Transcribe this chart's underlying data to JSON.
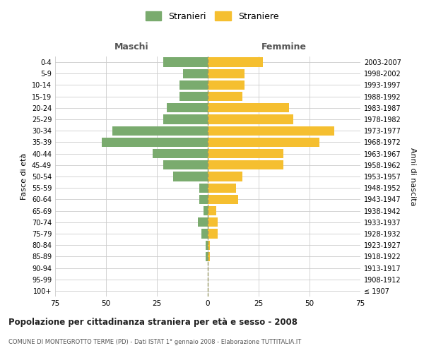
{
  "age_groups": [
    "100+",
    "95-99",
    "90-94",
    "85-89",
    "80-84",
    "75-79",
    "70-74",
    "65-69",
    "60-64",
    "55-59",
    "50-54",
    "45-49",
    "40-44",
    "35-39",
    "30-34",
    "25-29",
    "20-24",
    "15-19",
    "10-14",
    "5-9",
    "0-4"
  ],
  "birth_years": [
    "≤ 1907",
    "1908-1912",
    "1913-1917",
    "1918-1922",
    "1923-1927",
    "1928-1932",
    "1933-1937",
    "1938-1942",
    "1943-1947",
    "1948-1952",
    "1953-1957",
    "1958-1962",
    "1963-1967",
    "1968-1972",
    "1973-1977",
    "1978-1982",
    "1983-1987",
    "1988-1992",
    "1993-1997",
    "1998-2002",
    "2003-2007"
  ],
  "males": [
    0,
    0,
    0,
    1,
    1,
    3,
    5,
    2,
    4,
    4,
    17,
    22,
    27,
    52,
    47,
    22,
    20,
    14,
    14,
    12,
    22
  ],
  "females": [
    0,
    0,
    0,
    1,
    1,
    5,
    5,
    4,
    15,
    14,
    17,
    37,
    37,
    55,
    62,
    42,
    40,
    17,
    18,
    18,
    27
  ],
  "male_color": "#7aab6e",
  "female_color": "#f5bf30",
  "grid_color": "#cccccc",
  "dashed_line_color": "#999966",
  "title": "Popolazione per cittadinanza straniera per età e sesso - 2008",
  "subtitle": "COMUNE DI MONTEGROTTO TERME (PD) - Dati ISTAT 1° gennaio 2008 - Elaborazione TUTTITALIA.IT",
  "xlabel_left": "Maschi",
  "xlabel_right": "Femmine",
  "ylabel_left": "Fasce di età",
  "ylabel_right": "Anni di nascita",
  "legend_male": "Stranieri",
  "legend_female": "Straniere",
  "xlim": 75,
  "background_color": "#ffffff"
}
